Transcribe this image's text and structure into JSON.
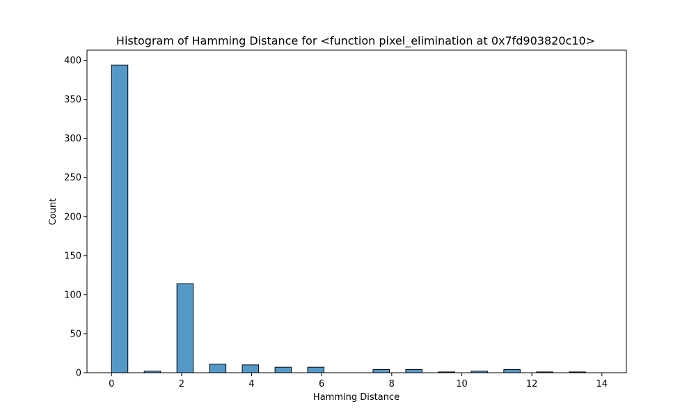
{
  "chart_data": {
    "type": "bar",
    "title": "Histogram of Hamming Distance for <function pixel_elimination at 0x7fd903820c10>",
    "xlabel": "Hamming Distance",
    "ylabel": "Count",
    "xlim": [
      -0.7,
      14.7
    ],
    "ylim": [
      0,
      413
    ],
    "x_ticks": [
      "0",
      "2",
      "4",
      "6",
      "8",
      "10",
      "12",
      "14"
    ],
    "y_ticks": [
      "0",
      "50",
      "100",
      "150",
      "200",
      "250",
      "300",
      "350",
      "400"
    ],
    "bin_width": 0.467,
    "bin_starts": [
      0,
      0.933,
      1.867,
      2.8,
      3.733,
      4.667,
      5.6,
      6.533,
      7.467,
      8.4,
      9.333,
      10.267,
      11.2,
      12.133,
      13.067
    ],
    "values": [
      394,
      2,
      114,
      11,
      10,
      7,
      7,
      0,
      4,
      4,
      1,
      2,
      4,
      1,
      1
    ],
    "bar_color": "#5499c7",
    "edge_color": "#000000",
    "grid": false,
    "legend": "none"
  }
}
